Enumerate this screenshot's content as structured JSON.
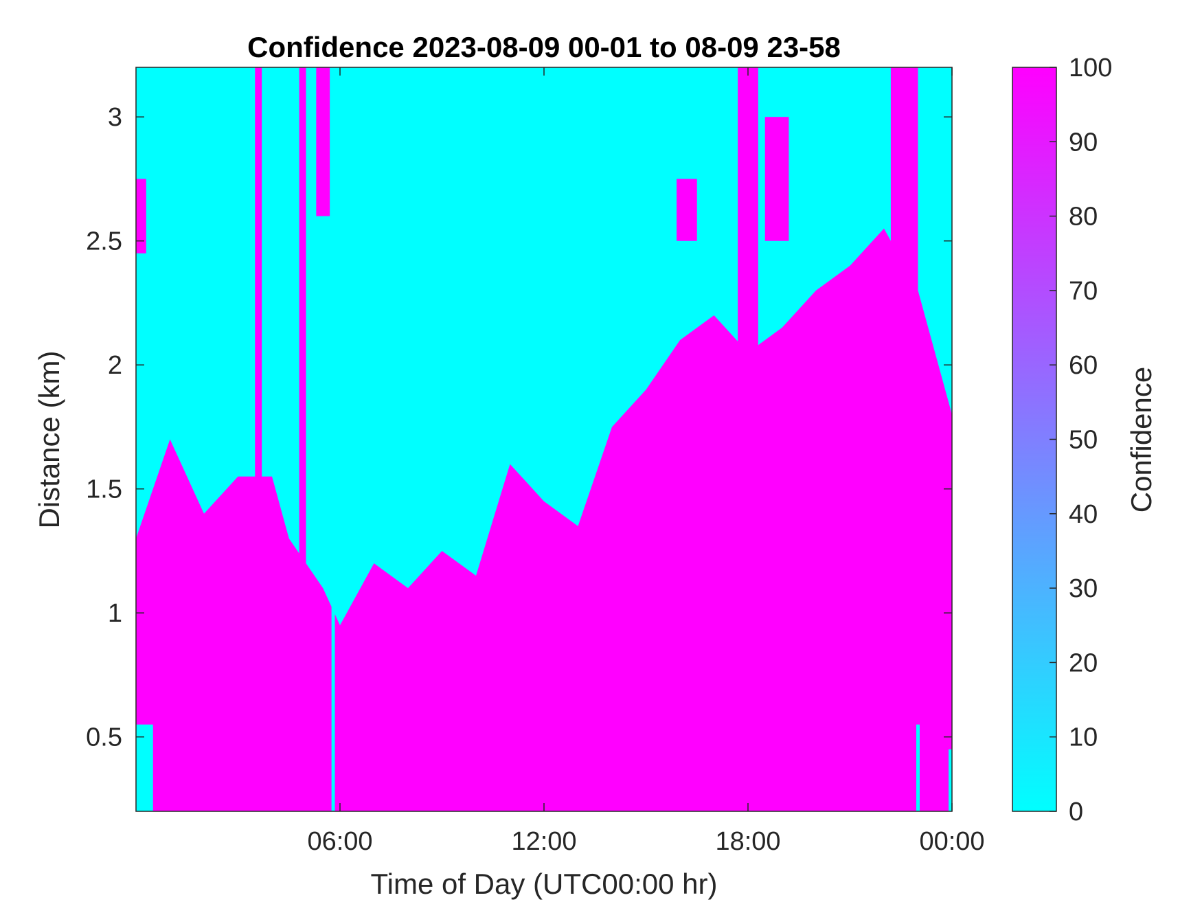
{
  "chart_data": {
    "type": "heatmap",
    "title": "Confidence 2023-08-09 00-01 to 08-09 23-58",
    "xlabel": "Time of Day (UTC00:00 hr)",
    "ylabel": "Distance (km)",
    "colorbar_label": "Confidence",
    "x_range_hours": [
      0,
      24
    ],
    "y_range_km": [
      0.2,
      3.2
    ],
    "x_ticks": [
      {
        "value": 6,
        "label": "06:00"
      },
      {
        "value": 12,
        "label": "12:00"
      },
      {
        "value": 18,
        "label": "18:00"
      },
      {
        "value": 24,
        "label": "00:00"
      }
    ],
    "y_ticks": [
      {
        "value": 0.5,
        "label": "0.5"
      },
      {
        "value": 1,
        "label": "1"
      },
      {
        "value": 1.5,
        "label": "1.5"
      },
      {
        "value": 2,
        "label": "2"
      },
      {
        "value": 2.5,
        "label": "2.5"
      },
      {
        "value": 3,
        "label": "3"
      }
    ],
    "colorbar_ticks": [
      {
        "value": 0,
        "label": "0"
      },
      {
        "value": 10,
        "label": "10"
      },
      {
        "value": 20,
        "label": "20"
      },
      {
        "value": 30,
        "label": "30"
      },
      {
        "value": 40,
        "label": "40"
      },
      {
        "value": 50,
        "label": "50"
      },
      {
        "value": 60,
        "label": "60"
      },
      {
        "value": 70,
        "label": "70"
      },
      {
        "value": 80,
        "label": "80"
      },
      {
        "value": 90,
        "label": "90"
      },
      {
        "value": 100,
        "label": "100"
      }
    ],
    "colormap": {
      "low": "#00ffff",
      "high": "#ff00ff",
      "range": [
        0,
        100
      ]
    },
    "low_confidence_value": 0,
    "high_confidence_value": 100,
    "boundary_hours": [
      0,
      1,
      2,
      3,
      4,
      4.5,
      5,
      5.5,
      6,
      7,
      8,
      9,
      10,
      11,
      12,
      13,
      14,
      15,
      16,
      17,
      18,
      19,
      20,
      21,
      22,
      23,
      24
    ],
    "boundary_km": [
      1.3,
      1.7,
      1.4,
      1.55,
      1.55,
      1.3,
      1.2,
      1.1,
      0.95,
      1.2,
      1.1,
      1.25,
      1.15,
      1.6,
      1.45,
      1.35,
      1.75,
      1.9,
      2.1,
      2.2,
      2.05,
      2.15,
      2.3,
      2.4,
      2.55,
      2.3,
      1.8
    ],
    "high_confidence_columns": [
      {
        "x_hours": [
          0.0,
          0.3
        ],
        "y_km": [
          2.45,
          2.75
        ]
      },
      {
        "x_hours": [
          3.5,
          3.7
        ],
        "y_km": [
          0.2,
          3.2
        ]
      },
      {
        "x_hours": [
          4.8,
          5.0
        ],
        "y_km": [
          0.2,
          3.2
        ]
      },
      {
        "x_hours": [
          5.3,
          5.7
        ],
        "y_km": [
          2.6,
          3.2
        ]
      },
      {
        "x_hours": [
          15.9,
          16.5
        ],
        "y_km": [
          2.5,
          2.75
        ]
      },
      {
        "x_hours": [
          17.7,
          18.3
        ],
        "y_km": [
          2.0,
          3.2
        ]
      },
      {
        "x_hours": [
          18.5,
          19.2
        ],
        "y_km": [
          2.5,
          3.0
        ]
      },
      {
        "x_hours": [
          22.2,
          23.0
        ],
        "y_km": [
          2.3,
          3.2
        ]
      }
    ],
    "low_confidence_columns": [
      {
        "x_hours": [
          0.0,
          0.5
        ],
        "y_km": [
          0.2,
          0.55
        ]
      },
      {
        "x_hours": [
          5.75,
          5.85
        ],
        "y_km": [
          0.2,
          2.6
        ]
      },
      {
        "x_hours": [
          22.95,
          23.05
        ],
        "y_km": [
          0.2,
          0.55
        ]
      },
      {
        "x_hours": [
          23.9,
          24.0
        ],
        "y_km": [
          0.2,
          0.45
        ]
      }
    ]
  }
}
